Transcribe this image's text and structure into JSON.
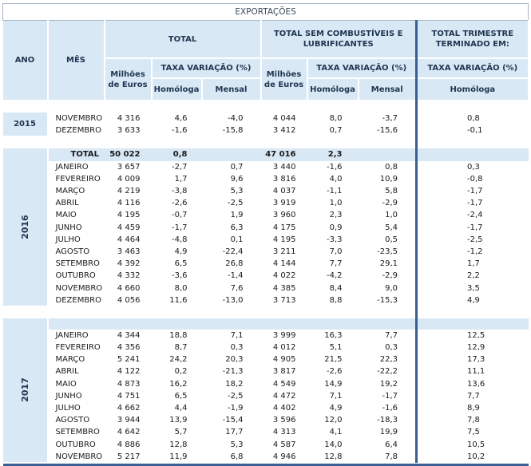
{
  "title": "EXPORTAÇÕES",
  "headers": {
    "ano": "ANO",
    "mes": "MÊS",
    "total": "TOTAL",
    "total_sem": "TOTAL SEM COMBUSTÍVEIS E LUBRIFICANTES",
    "trimestre": "TOTAL TRIMESTRE TERMINADO EM:",
    "milhoes": "Milhões de Euros",
    "taxa": "TAXA VARIAÇÃO (%)",
    "homologa": "Homóloga",
    "mensal": "Mensal"
  },
  "years": [
    {
      "year": "2015",
      "rows": [
        {
          "mes": "NOVEMBRO",
          "v1": "4 316",
          "v2": "4,6",
          "v3": "-4,0",
          "v4": "4 044",
          "v5": "8,0",
          "v6": "-3,7",
          "v7": "0,8"
        },
        {
          "mes": "DEZEMBRO",
          "v1": "3 633",
          "v2": "-1,6",
          "v3": "-15,8",
          "v4": "3 412",
          "v5": "0,7",
          "v6": "-15,6",
          "v7": "-0,1"
        }
      ]
    },
    {
      "year": "2016",
      "total": {
        "mes": "TOTAL",
        "v1": "50 022",
        "v2": "0,8",
        "v4": "47 016",
        "v5": "2,3"
      },
      "rows": [
        {
          "mes": "JANEIRO",
          "v1": "3 657",
          "v2": "-2,7",
          "v3": "0,7",
          "v4": "3 440",
          "v5": "-1,6",
          "v6": "0,8",
          "v7": "0,3"
        },
        {
          "mes": "FEVEREIRO",
          "v1": "4 009",
          "v2": "1,7",
          "v3": "9,6",
          "v4": "3 816",
          "v5": "4,0",
          "v6": "10,9",
          "v7": "-0,8"
        },
        {
          "mes": "MARÇO",
          "v1": "4 219",
          "v2": "-3,8",
          "v3": "5,3",
          "v4": "4 037",
          "v5": "-1,1",
          "v6": "5,8",
          "v7": "-1,7"
        },
        {
          "mes": "ABRIL",
          "v1": "4 116",
          "v2": "-2,6",
          "v3": "-2,5",
          "v4": "3 919",
          "v5": "1,0",
          "v6": "-2,9",
          "v7": "-1,7"
        },
        {
          "mes": "MAIO",
          "v1": "4 195",
          "v2": "-0,7",
          "v3": "1,9",
          "v4": "3 960",
          "v5": "2,3",
          "v6": "1,0",
          "v7": "-2,4"
        },
        {
          "mes": "JUNHO",
          "v1": "4 459",
          "v2": "-1,7",
          "v3": "6,3",
          "v4": "4 175",
          "v5": "0,9",
          "v6": "5,4",
          "v7": "-1,7"
        },
        {
          "mes": "JULHO",
          "v1": "4 464",
          "v2": "-4,8",
          "v3": "0,1",
          "v4": "4 195",
          "v5": "-3,3",
          "v6": "0,5",
          "v7": "-2,5"
        },
        {
          "mes": "AGOSTO",
          "v1": "3 463",
          "v2": "4,9",
          "v3": "-22,4",
          "v4": "3 211",
          "v5": "7,0",
          "v6": "-23,5",
          "v7": "-1,2"
        },
        {
          "mes": "SETEMBRO",
          "v1": "4 392",
          "v2": "6,5",
          "v3": "26,8",
          "v4": "4 144",
          "v5": "7,7",
          "v6": "29,1",
          "v7": "1,7"
        },
        {
          "mes": "OUTUBRO",
          "v1": "4 332",
          "v2": "-3,6",
          "v3": "-1,4",
          "v4": "4 022",
          "v5": "-4,2",
          "v6": "-2,9",
          "v7": "2,2"
        },
        {
          "mes": "NOVEMBRO",
          "v1": "4 660",
          "v2": "8,0",
          "v3": "7,6",
          "v4": "4 385",
          "v5": "8,4",
          "v6": "9,0",
          "v7": "3,5"
        },
        {
          "mes": "DEZEMBRO",
          "v1": "4 056",
          "v2": "11,6",
          "v3": "-13,0",
          "v4": "3 713",
          "v5": "8,8",
          "v6": "-15,3",
          "v7": "4,9"
        }
      ]
    },
    {
      "year": "2017",
      "rows": [
        {
          "mes": "JANEIRO",
          "v1": "4 344",
          "v2": "18,8",
          "v3": "7,1",
          "v4": "3 999",
          "v5": "16,3",
          "v6": "7,7",
          "v7": "12,5"
        },
        {
          "mes": "FEVEREIRO",
          "v1": "4 356",
          "v2": "8,7",
          "v3": "0,3",
          "v4": "4 012",
          "v5": "5,1",
          "v6": "0,3",
          "v7": "12,9"
        },
        {
          "mes": "MARÇO",
          "v1": "5 241",
          "v2": "24,2",
          "v3": "20,3",
          "v4": "4 905",
          "v5": "21,5",
          "v6": "22,3",
          "v7": "17,3"
        },
        {
          "mes": "ABRIL",
          "v1": "4 122",
          "v2": "0,2",
          "v3": "-21,3",
          "v4": "3 817",
          "v5": "-2,6",
          "v6": "-22,2",
          "v7": "11,1"
        },
        {
          "mes": "MAIO",
          "v1": "4 873",
          "v2": "16,2",
          "v3": "18,2",
          "v4": "4 549",
          "v5": "14,9",
          "v6": "19,2",
          "v7": "13,6"
        },
        {
          "mes": "JUNHO",
          "v1": "4 751",
          "v2": "6,5",
          "v3": "-2,5",
          "v4": "4 472",
          "v5": "7,1",
          "v6": "-1,7",
          "v7": "7,7"
        },
        {
          "mes": "JULHO",
          "v1": "4 662",
          "v2": "4,4",
          "v3": "-1,9",
          "v4": "4 402",
          "v5": "4,9",
          "v6": "-1,6",
          "v7": "8,9"
        },
        {
          "mes": "AGOSTO",
          "v1": "3 944",
          "v2": "13,9",
          "v3": "-15,4",
          "v4": "3 596",
          "v5": "12,0",
          "v6": "-18,3",
          "v7": "7,8"
        },
        {
          "mes": "SETEMBRO",
          "v1": "4 642",
          "v2": "5,7",
          "v3": "17,7",
          "v4": "4 313",
          "v5": "4,1",
          "v6": "19,9",
          "v7": "7,5"
        },
        {
          "mes": "OUTUBRO",
          "v1": "4 886",
          "v2": "12,8",
          "v3": "5,3",
          "v4": "4 587",
          "v5": "14,0",
          "v6": "6,4",
          "v7": "10,5"
        },
        {
          "mes": "NOVEMBRO",
          "v1": "5 217",
          "v2": "11,9",
          "v3": "6,8",
          "v4": "4 946",
          "v5": "12,8",
          "v6": "7,8",
          "v7": "10,2"
        }
      ]
    }
  ]
}
